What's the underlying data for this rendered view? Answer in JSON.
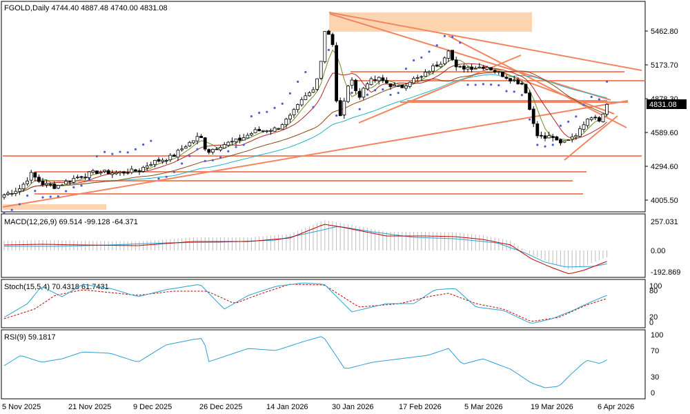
{
  "panels": {
    "price": {
      "header": "FGOLD,Daily  4744.40 4887.48 4740.00 4831.08",
      "current": "4831.08"
    },
    "macd": {
      "header": "MACD(12,26,9) 69.514 -99.128 -64.371"
    },
    "stoch": {
      "header": "Stoch(15,5,4) 70.4318 61.7431"
    },
    "rsi": {
      "header": "RSI(9) 59.1817"
    }
  },
  "price_axis": [
    "5462.80",
    "5173.70",
    "4878.30",
    "4589.60",
    "4294.60",
    "4005.50"
  ],
  "macd_axis": [
    "257.031",
    "0.00",
    "-192.869"
  ],
  "stoch_axis": [
    "100",
    "80",
    "20",
    "0"
  ],
  "rsi_axis": [
    "100",
    "70",
    "30",
    "0"
  ],
  "date_axis": [
    "5 Nov 2025",
    "21 Nov 2025",
    "9 Dec 2025",
    "26 Dec 2025",
    "14 Jan 2026",
    "30 Jan 2026",
    "17 Feb 2026",
    "5 Mar 2026",
    "19 Mar 2026",
    "6 Apr 2026"
  ],
  "colors": {
    "up_candle": "#ffffff",
    "down_candle": "#000000",
    "trendline": "#f4845f",
    "zone": "#fcd5b0",
    "ma_fast": "#6b8e23",
    "ma_mid": "#b22222",
    "ma_slow": "#8b4513",
    "ma_long": "#20b2c8",
    "sar": "#4a5fd8",
    "signal_line": "#c00000",
    "osc_line": "#2aa0d0"
  },
  "chart_data": [
    {
      "type": "line",
      "title": "FGOLD,Daily",
      "ohlc_header": [
        4744.4,
        4887.48,
        4740.0,
        4831.08
      ],
      "x": [
        "5 Nov 2025",
        "21 Nov 2025",
        "9 Dec 2025",
        "26 Dec 2025",
        "14 Jan 2026",
        "30 Jan 2026",
        "17 Feb 2026",
        "5 Mar 2026",
        "19 Mar 2026",
        "6 Apr 2026"
      ],
      "series": [
        {
          "values": [
            4005,
            4200,
            4250,
            4480,
            4850,
            5520,
            5080,
            5150,
            4520,
            4831
          ]
        }
      ],
      "ylim": [
        4005.5,
        5462.8
      ],
      "current": 4831.08
    },
    {
      "type": "line",
      "title": "MACD(12,26,9)",
      "values": [
        69.514,
        -99.128,
        -64.371
      ],
      "ylim": [
        -192.869,
        257.031
      ]
    },
    {
      "type": "line",
      "title": "Stoch(15,5,4)",
      "values": [
        70.4318,
        61.7431
      ],
      "ylim": [
        0,
        100
      ]
    },
    {
      "type": "line",
      "title": "RSI(9)",
      "values": [
        59.1817
      ],
      "ylim": [
        0,
        100
      ]
    }
  ]
}
